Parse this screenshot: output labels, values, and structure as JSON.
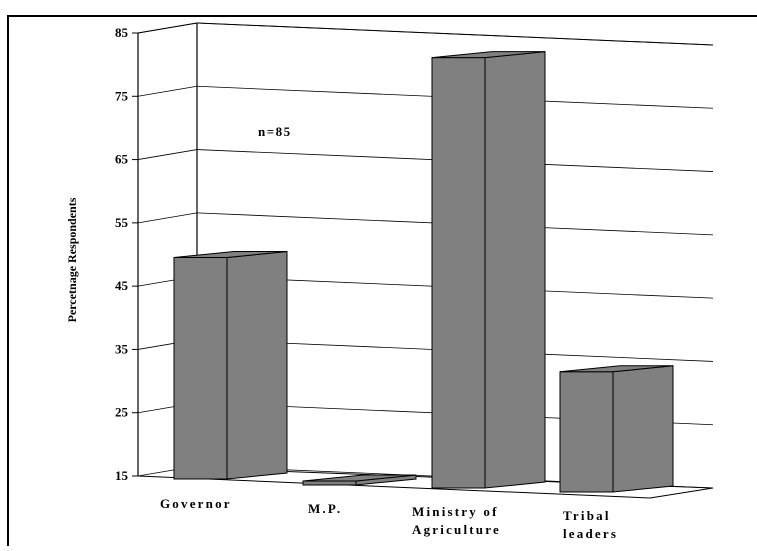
{
  "chart_data": {
    "type": "bar",
    "title": "",
    "xlabel": "",
    "ylabel": "Percetnage Respondents",
    "annotation": "n=85",
    "categories": [
      [
        "Governor"
      ],
      [
        "M.P."
      ],
      [
        "Ministry of",
        "Agriculture"
      ],
      [
        "Tribal",
        "leaders"
      ]
    ],
    "values": [
      50,
      15.5,
      83,
      34
    ],
    "yticks": [
      15,
      25,
      35,
      45,
      55,
      65,
      75,
      85
    ],
    "ylim": [
      15,
      85
    ],
    "grid": true,
    "bar_color": "#808080",
    "three_d": true
  }
}
